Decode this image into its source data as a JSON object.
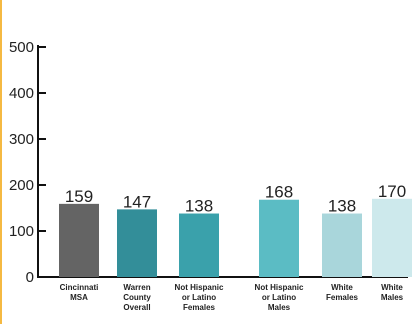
{
  "chart_data": {
    "type": "bar",
    "categories": [
      [
        "Cincinnati",
        "MSA"
      ],
      [
        "Warren",
        "County",
        "Overall"
      ],
      [
        "Not Hispanic",
        "or Latino",
        "Females"
      ],
      [
        "Not Hispanic",
        "or Latino",
        "Males"
      ],
      [
        "White",
        "Females"
      ],
      [
        "White",
        "Males"
      ]
    ],
    "values": [
      159,
      147,
      138,
      168,
      138,
      170
    ],
    "value_labels": [
      "159",
      "147",
      "138",
      "168",
      "138",
      "170"
    ],
    "yticks": [
      "0",
      "100",
      "200",
      "300",
      "400",
      "500"
    ],
    "ytick_values": [
      0,
      100,
      200,
      300,
      400,
      500
    ],
    "ylim": [
      0,
      500
    ],
    "grid": false,
    "legend": "none",
    "colors": [
      "#646464",
      "#338e99",
      "#3aa1ab",
      "#5bbcc4",
      "#a9d6db",
      "#cde9ec"
    ],
    "accent_edge_color": "#f5b942"
  }
}
